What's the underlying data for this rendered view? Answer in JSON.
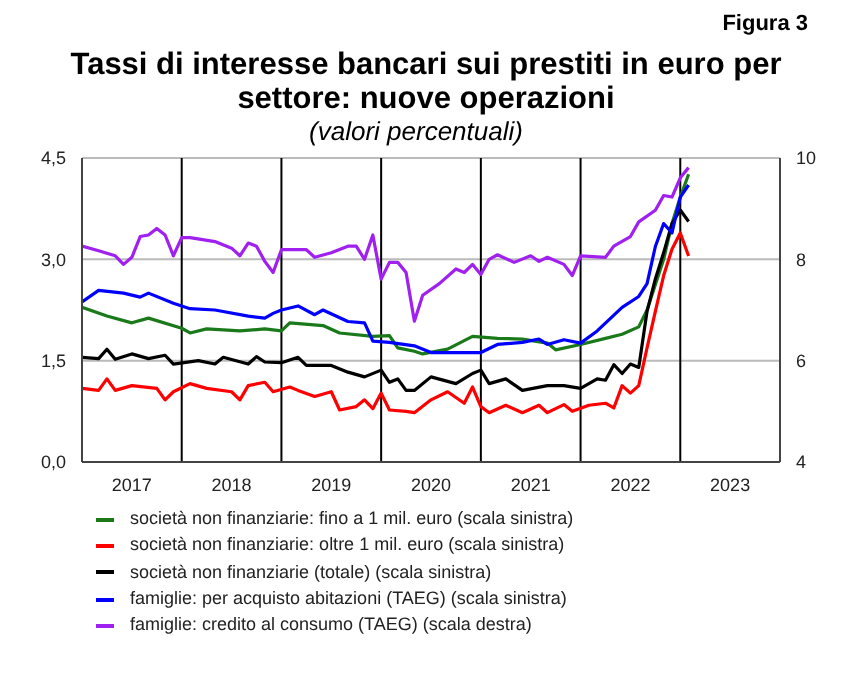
{
  "chart_data": {
    "type": "line",
    "title": "Tassi di interesse bancari sui prestiti in euro per settore: nuove operazioni",
    "subtitle": "(valori percentuali)",
    "annotations": [
      "Figura 3"
    ],
    "xlim": [
      "2017-01",
      "2024-01"
    ],
    "xticks": [
      {
        "value": "2017-07",
        "label": "2017"
      },
      {
        "value": "2018-07",
        "label": "2018"
      },
      {
        "value": "2019-07",
        "label": "2019"
      },
      {
        "value": "2020-07",
        "label": "2020"
      },
      {
        "value": "2021-07",
        "label": "2021"
      },
      {
        "value": "2022-07",
        "label": "2022"
      },
      {
        "value": "2023-07",
        "label": "2023"
      }
    ],
    "ylim": [
      0,
      4.5
    ],
    "yticks": [
      {
        "value": 0,
        "label": "0,0"
      },
      {
        "value": 1.5,
        "label": "1,5"
      },
      {
        "value": 3,
        "label": "3,0"
      },
      {
        "value": 4.5,
        "label": "4,5"
      }
    ],
    "y2lim": [
      4,
      10
    ],
    "y2ticks": [
      4,
      6,
      8,
      10
    ],
    "grid": "y",
    "legend": "bottom",
    "marker": "none",
    "line_style": "solid",
    "ref_lines": [
      {
        "axis": "x",
        "value": "2018-01",
        "color": "#000000"
      },
      {
        "axis": "x",
        "value": "2019-01",
        "color": "#000000"
      },
      {
        "axis": "x",
        "value": "2020-01",
        "color": "#000000"
      },
      {
        "axis": "x",
        "value": "2021-01",
        "color": "#000000"
      },
      {
        "axis": "x",
        "value": "2022-01",
        "color": "#000000"
      },
      {
        "axis": "x",
        "value": "2023-01",
        "color": "#000000"
      }
    ],
    "series": [
      {
        "name": "società non finanziarie: fino a 1 mil. euro (scala sinistra)",
        "color": "#1a7a1a",
        "x": [
          "2017-01",
          "2017-04",
          "2017-07",
          "2017-09",
          "2018-01",
          "2018-02",
          "2018-04",
          "2018-08",
          "2018-11",
          "2019-01",
          "2019-02",
          "2019-06",
          "2019-08",
          "2019-12",
          "2020-02",
          "2020-03",
          "2020-05",
          "2020-06",
          "2020-09",
          "2020-12",
          "2021-03",
          "2021-06",
          "2021-09",
          "2021-10",
          "2022-01",
          "2022-04",
          "2022-06",
          "2022-08",
          "2022-09",
          "2022-11",
          "2022-12",
          "2023-01",
          "2023-02"
        ],
        "values": [
          2.29,
          2.16,
          2.06,
          2.13,
          1.98,
          1.91,
          1.97,
          1.94,
          1.97,
          1.94,
          2.06,
          2.02,
          1.91,
          1.86,
          1.87,
          1.69,
          1.64,
          1.6,
          1.67,
          1.86,
          1.83,
          1.82,
          1.76,
          1.66,
          1.74,
          1.83,
          1.89,
          2.0,
          2.25,
          3.0,
          3.53,
          3.92,
          4.26
        ]
      },
      {
        "name": "società non finanziarie: oltre 1 mil. euro (scala sinistra)",
        "color": "#ff0000",
        "x": [
          "2017-01",
          "2017-03",
          "2017-04",
          "2017-05",
          "2017-07",
          "2017-10",
          "2017-11",
          "2017-12",
          "2018-02",
          "2018-04",
          "2018-07",
          "2018-08",
          "2018-09",
          "2018-11",
          "2018-12",
          "2019-02",
          "2019-03",
          "2019-05",
          "2019-07",
          "2019-08",
          "2019-10",
          "2019-11",
          "2019-12",
          "2020-01",
          "2020-02",
          "2020-04",
          "2020-05",
          "2020-07",
          "2020-09",
          "2020-11",
          "2020-12",
          "2021-01",
          "2021-02",
          "2021-04",
          "2021-06",
          "2021-08",
          "2021-09",
          "2021-11",
          "2021-12",
          "2022-02",
          "2022-04",
          "2022-05",
          "2022-06",
          "2022-07",
          "2022-08",
          "2022-09",
          "2022-10",
          "2022-11",
          "2022-12",
          "2023-01",
          "2023-02"
        ],
        "values": [
          1.09,
          1.06,
          1.23,
          1.06,
          1.13,
          1.09,
          0.92,
          1.04,
          1.16,
          1.09,
          1.04,
          0.92,
          1.13,
          1.18,
          1.04,
          1.11,
          1.06,
          0.97,
          1.04,
          0.77,
          0.82,
          0.92,
          0.79,
          1.02,
          0.77,
          0.75,
          0.73,
          0.92,
          1.04,
          0.87,
          1.11,
          0.82,
          0.73,
          0.84,
          0.73,
          0.84,
          0.73,
          0.85,
          0.75,
          0.84,
          0.87,
          0.8,
          1.13,
          1.02,
          1.13,
          1.69,
          2.23,
          2.76,
          3.15,
          3.39,
          3.05
        ]
      },
      {
        "name": "società non finanziarie (totale) (scala sinistra)",
        "color": "#000000",
        "x": [
          "2017-01",
          "2017-03",
          "2017-04",
          "2017-05",
          "2017-07",
          "2017-09",
          "2017-11",
          "2017-12",
          "2018-03",
          "2018-05",
          "2018-06",
          "2018-09",
          "2018-10",
          "2018-11",
          "2019-01",
          "2019-03",
          "2019-04",
          "2019-07",
          "2019-09",
          "2019-11",
          "2020-01",
          "2020-02",
          "2020-03",
          "2020-04",
          "2020-05",
          "2020-07",
          "2020-10",
          "2020-12",
          "2021-01",
          "2021-02",
          "2021-04",
          "2021-06",
          "2021-09",
          "2021-11",
          "2022-01",
          "2022-03",
          "2022-04",
          "2022-05",
          "2022-06",
          "2022-07",
          "2022-08",
          "2022-09",
          "2022-10",
          "2022-11",
          "2022-12",
          "2023-01",
          "2023-02"
        ],
        "values": [
          1.55,
          1.53,
          1.67,
          1.52,
          1.6,
          1.53,
          1.58,
          1.45,
          1.5,
          1.45,
          1.55,
          1.45,
          1.56,
          1.48,
          1.47,
          1.55,
          1.43,
          1.43,
          1.33,
          1.26,
          1.36,
          1.18,
          1.23,
          1.06,
          1.06,
          1.26,
          1.16,
          1.31,
          1.36,
          1.16,
          1.23,
          1.06,
          1.13,
          1.13,
          1.09,
          1.23,
          1.21,
          1.44,
          1.31,
          1.45,
          1.4,
          2.23,
          2.71,
          3.1,
          3.53,
          3.73,
          3.56
        ]
      },
      {
        "name": "famiglie: per acquisto abitazioni (TAEG) (scala sinistra)",
        "color": "#0000ff",
        "x": [
          "2017-01",
          "2017-03",
          "2017-06",
          "2017-08",
          "2017-09",
          "2017-12",
          "2018-02",
          "2018-05",
          "2018-09",
          "2018-11",
          "2018-12",
          "2019-01",
          "2019-03",
          "2019-05",
          "2019-06",
          "2019-09",
          "2019-11",
          "2019-12",
          "2020-02",
          "2020-05",
          "2020-07",
          "2020-10",
          "2021-01",
          "2021-03",
          "2021-06",
          "2021-08",
          "2021-09",
          "2021-11",
          "2022-01",
          "2022-03",
          "2022-06",
          "2022-08",
          "2022-09",
          "2022-10",
          "2022-11",
          "2022-12",
          "2023-01",
          "2023-02"
        ],
        "values": [
          2.37,
          2.54,
          2.5,
          2.44,
          2.5,
          2.35,
          2.27,
          2.25,
          2.16,
          2.13,
          2.2,
          2.25,
          2.31,
          2.18,
          2.25,
          2.08,
          2.06,
          1.79,
          1.77,
          1.72,
          1.62,
          1.62,
          1.62,
          1.74,
          1.77,
          1.82,
          1.74,
          1.81,
          1.76,
          1.94,
          2.29,
          2.45,
          2.64,
          3.19,
          3.53,
          3.39,
          3.92,
          4.1
        ]
      },
      {
        "name": "famiglie: credito al consumo (TAEG) (scala destra)",
        "color": "#a020f0",
        "axis": "y2",
        "x": [
          "2017-01",
          "2017-03",
          "2017-05",
          "2017-06",
          "2017-07",
          "2017-08",
          "2017-09",
          "2017-10",
          "2017-11",
          "2017-12",
          "2018-01",
          "2018-02",
          "2018-05",
          "2018-07",
          "2018-08",
          "2018-09",
          "2018-10",
          "2018-11",
          "2018-12",
          "2019-01",
          "2019-04",
          "2019-05",
          "2019-07",
          "2019-09",
          "2019-10",
          "2019-11",
          "2019-12",
          "2020-01",
          "2020-02",
          "2020-03",
          "2020-04",
          "2020-05",
          "2020-06",
          "2020-08",
          "2020-10",
          "2020-11",
          "2020-12",
          "2021-01",
          "2021-02",
          "2021-03",
          "2021-05",
          "2021-07",
          "2021-08",
          "2021-09",
          "2021-11",
          "2021-12",
          "2022-01",
          "2022-04",
          "2022-05",
          "2022-07",
          "2022-08",
          "2022-10",
          "2022-11",
          "2022-12",
          "2023-01",
          "2023-02"
        ],
        "values": [
          8.26,
          8.17,
          8.07,
          7.9,
          8.04,
          8.45,
          8.48,
          8.61,
          8.48,
          8.07,
          8.43,
          8.43,
          8.35,
          8.22,
          8.07,
          8.32,
          8.26,
          7.96,
          7.74,
          8.19,
          8.19,
          8.04,
          8.13,
          8.26,
          8.26,
          8.0,
          8.48,
          7.61,
          7.94,
          7.94,
          7.74,
          6.78,
          7.29,
          7.52,
          7.81,
          7.74,
          7.9,
          7.7,
          8.0,
          8.09,
          7.94,
          8.07,
          7.96,
          8.04,
          7.9,
          7.68,
          8.07,
          8.04,
          8.26,
          8.45,
          8.74,
          8.97,
          9.26,
          9.23,
          9.61,
          9.81
        ]
      }
    ]
  }
}
